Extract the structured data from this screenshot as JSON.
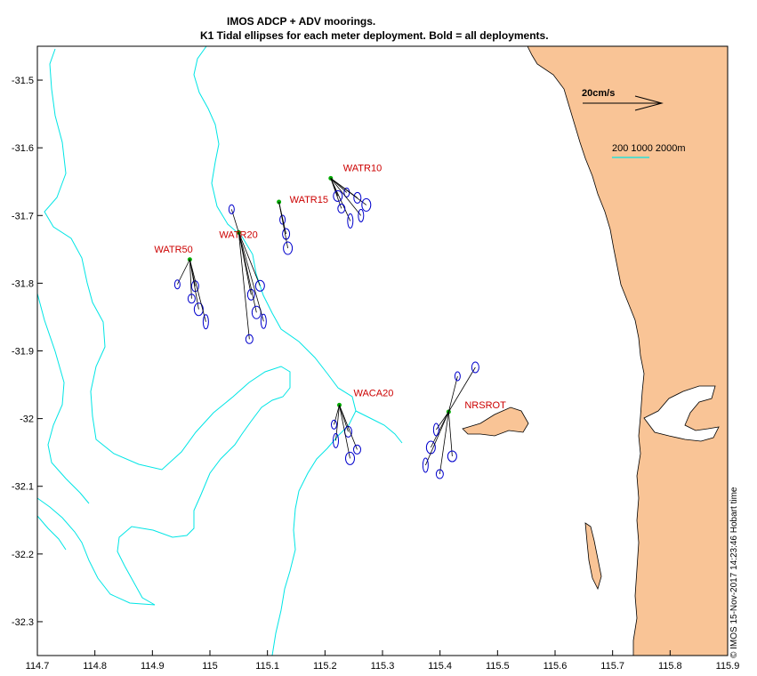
{
  "title": {
    "line1": "IMOS ADCP + ADV moorings.",
    "line2": "K1  Tidal ellipses for each meter deployment. Bold = all deployments."
  },
  "axes": {
    "x_ticks": [
      "114.7",
      "114.8",
      "114.9",
      "115",
      "115.1",
      "115.2",
      "115.3",
      "115.4",
      "115.5",
      "115.6",
      "115.7",
      "115.8",
      "115.9"
    ],
    "y_ticks": [
      "-31.5",
      "-31.6",
      "-31.7",
      "-31.8",
      "-31.9",
      "-32",
      "-32.1",
      "-32.2",
      "-32.3"
    ],
    "xlim": [
      114.7,
      115.9
    ],
    "ylim": [
      -32.35,
      -31.45
    ]
  },
  "scale_arrow": {
    "label": "20cm/s"
  },
  "depth_legend": {
    "label": "200  1000  2000m"
  },
  "moorings": [
    {
      "name": "WATR10",
      "lon": 115.21,
      "lat": -31.645
    },
    {
      "name": "WATR15",
      "lon": 115.12,
      "lat": -31.68
    },
    {
      "name": "WATR20",
      "lon": 115.05,
      "lat": -31.725
    },
    {
      "name": "WATR50",
      "lon": 114.965,
      "lat": -31.765
    },
    {
      "name": "WACA20",
      "lon": 115.225,
      "lat": -31.98
    },
    {
      "name": "NRSROT",
      "lon": 115.415,
      "lat": -31.99
    }
  ],
  "footer": "© IMOS 15-Nov-2017 14:23:46 Hobart time",
  "colors": {
    "land": "#f9c496",
    "isobath": "#00e5e5",
    "ellipse": "#0000cc",
    "label": "#cc0000",
    "vector": "#000000",
    "mooring_marker": "#00aa00"
  }
}
